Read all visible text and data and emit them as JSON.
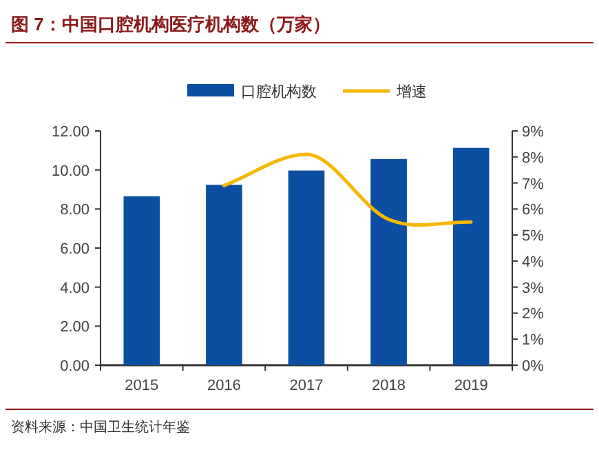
{
  "chart_data": {
    "type": "bar",
    "title": "图 7：中国口腔机构医疗机构数（万家）",
    "categories": [
      "2015",
      "2016",
      "2017",
      "2018",
      "2019"
    ],
    "series": [
      {
        "name": "口腔机构数",
        "color": "#0b4ea2",
        "values": [
          8.65,
          9.24,
          9.97,
          10.56,
          11.13
        ]
      },
      {
        "name": "增速",
        "type": "line",
        "axis": "y2",
        "color": "#f5b800",
        "values": [
          null,
          6.9,
          8.1,
          5.6,
          5.5
        ]
      }
    ],
    "ylim": [
      0,
      12
    ],
    "yticks": [
      {
        "value": 0,
        "label": "0.00"
      },
      {
        "value": 2,
        "label": "2.00"
      },
      {
        "value": 4,
        "label": "4.00"
      },
      {
        "value": 6,
        "label": "6.00"
      },
      {
        "value": 8,
        "label": "8.00"
      },
      {
        "value": 10,
        "label": "10.00"
      },
      {
        "value": 12,
        "label": "12.00"
      }
    ],
    "y2lim": [
      0,
      9
    ],
    "y2ticks": [
      {
        "value": 0,
        "label": "0%"
      },
      {
        "value": 1,
        "label": "1%"
      },
      {
        "value": 2,
        "label": "2%"
      },
      {
        "value": 3,
        "label": "3%"
      },
      {
        "value": 4,
        "label": "4%"
      },
      {
        "value": 5,
        "label": "5%"
      },
      {
        "value": 6,
        "label": "6%"
      },
      {
        "value": 7,
        "label": "7%"
      },
      {
        "value": 8,
        "label": "8%"
      },
      {
        "value": 9,
        "label": "9%"
      }
    ],
    "legend": "top",
    "annotations": [
      "资料来源：中国卫生统计年鉴"
    ]
  }
}
